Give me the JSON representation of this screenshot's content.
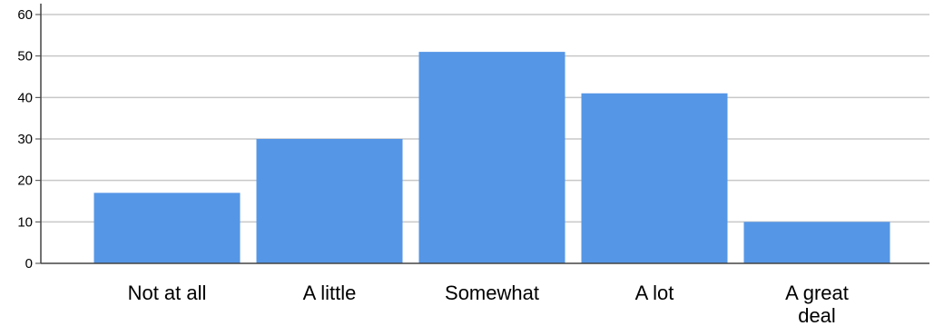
{
  "chart_data": {
    "type": "bar",
    "title": "",
    "xlabel": "",
    "ylabel": "",
    "categories": [
      [
        "Not at all"
      ],
      [
        "A little"
      ],
      [
        "Somewhat"
      ],
      [
        "A lot"
      ],
      [
        "A great",
        "deal"
      ]
    ],
    "values": [
      17,
      30,
      51,
      41,
      10
    ],
    "ylim": [
      0,
      60
    ],
    "yticks": [
      0,
      10,
      20,
      30,
      40,
      50,
      60
    ],
    "grid": true,
    "colors": {
      "bar": "#5596e6",
      "grid": "#c8c8c8",
      "axis": "#444444"
    }
  }
}
